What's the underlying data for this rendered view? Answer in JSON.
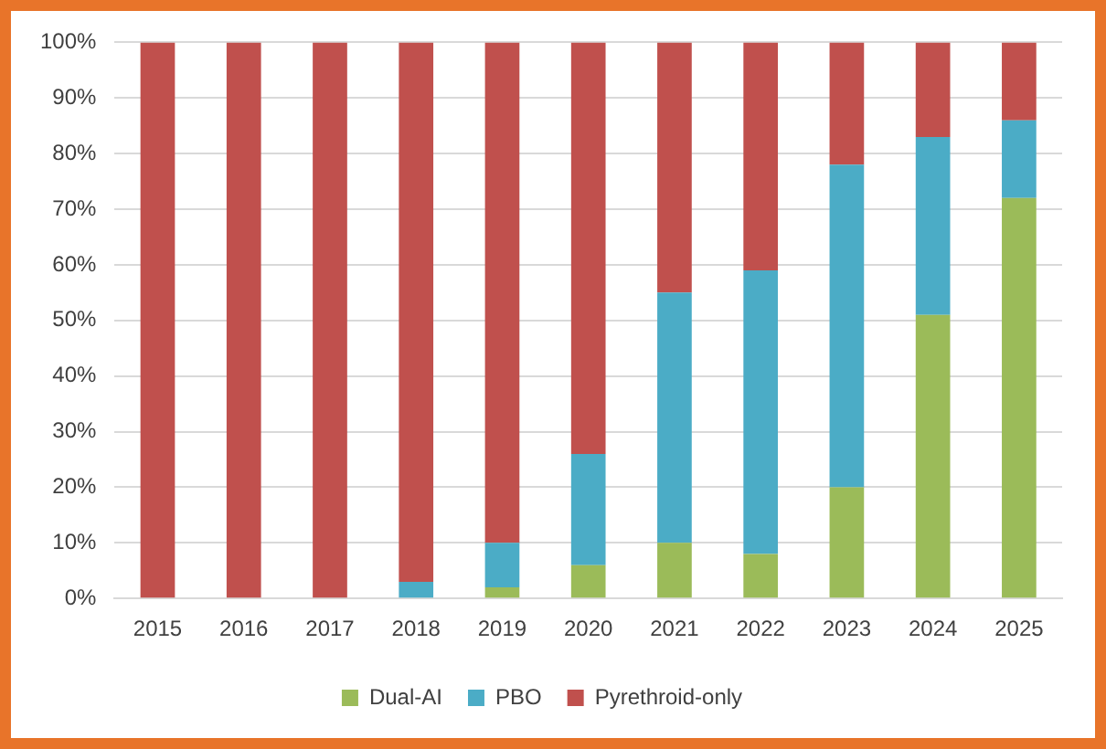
{
  "chart_data": {
    "type": "bar",
    "stacked": true,
    "categories": [
      "2015",
      "2016",
      "2017",
      "2018",
      "2019",
      "2020",
      "2021",
      "2022",
      "2023",
      "2024",
      "2025"
    ],
    "series": [
      {
        "name": "Dual-AI",
        "color": "#9bbb59",
        "values": [
          0,
          0,
          0,
          0,
          2,
          6,
          10,
          8,
          20,
          51,
          72
        ]
      },
      {
        "name": "PBO",
        "color": "#4bacc6",
        "values": [
          0,
          0,
          0,
          3,
          8,
          20,
          45,
          51,
          58,
          32,
          14
        ]
      },
      {
        "name": "Pyrethroid-only",
        "color": "#c0504d",
        "values": [
          100,
          100,
          100,
          97,
          90,
          74,
          45,
          41,
          22,
          17,
          14
        ]
      }
    ],
    "ylim": [
      0,
      100
    ],
    "yticks": [
      {
        "value": 0,
        "label": "0%"
      },
      {
        "value": 10,
        "label": "10%"
      },
      {
        "value": 20,
        "label": "20%"
      },
      {
        "value": 30,
        "label": "30%"
      },
      {
        "value": 40,
        "label": "40%"
      },
      {
        "value": 50,
        "label": "50%"
      },
      {
        "value": 60,
        "label": "60%"
      },
      {
        "value": 70,
        "label": "70%"
      },
      {
        "value": 80,
        "label": "80%"
      },
      {
        "value": 90,
        "label": "90%"
      },
      {
        "value": 100,
        "label": "100%"
      }
    ],
    "grid": "y",
    "legend": "bottom"
  }
}
